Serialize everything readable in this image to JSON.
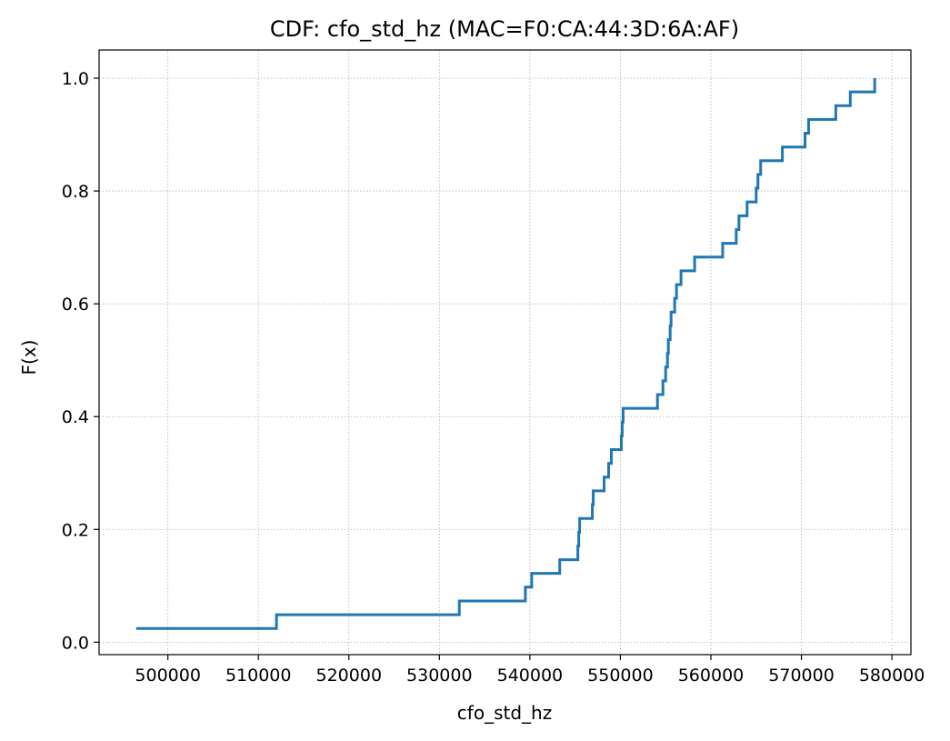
{
  "chart_data": {
    "type": "line",
    "step": true,
    "title": "CDF: cfo_std_hz (MAC=F0:CA:44:3D:6A:AF)",
    "xlabel": "cfo_std_hz",
    "ylabel": "F(x)",
    "xlim": [
      492400,
      582100
    ],
    "ylim": [
      -0.022,
      1.05
    ],
    "grid": true,
    "x_ticks": [
      500000,
      510000,
      520000,
      530000,
      540000,
      550000,
      560000,
      570000,
      580000
    ],
    "x_tick_labels": [
      "500000",
      "510000",
      "520000",
      "530000",
      "540000",
      "550000",
      "560000",
      "570000",
      "580000"
    ],
    "y_ticks": [
      0.0,
      0.2,
      0.4,
      0.6,
      0.8,
      1.0
    ],
    "y_tick_labels": [
      "0.0",
      "0.2",
      "0.4",
      "0.6",
      "0.8",
      "1.0"
    ],
    "series": [
      {
        "color": "#1f77b4",
        "points": [
          [
            496500,
            0.0244
          ],
          [
            512000,
            0.0244
          ],
          [
            512000,
            0.0488
          ],
          [
            532200,
            0.0488
          ],
          [
            532200,
            0.0732
          ],
          [
            539500,
            0.0732
          ],
          [
            539500,
            0.0976
          ],
          [
            540200,
            0.0976
          ],
          [
            540200,
            0.122
          ],
          [
            543300,
            0.122
          ],
          [
            543300,
            0.1463
          ],
          [
            545300,
            0.1463
          ],
          [
            545300,
            0.1707
          ],
          [
            545400,
            0.1707
          ],
          [
            545400,
            0.1951
          ],
          [
            545500,
            0.1951
          ],
          [
            545500,
            0.2195
          ],
          [
            546900,
            0.2195
          ],
          [
            546900,
            0.2439
          ],
          [
            547000,
            0.2439
          ],
          [
            547000,
            0.2683
          ],
          [
            548200,
            0.2683
          ],
          [
            548200,
            0.2927
          ],
          [
            548700,
            0.2927
          ],
          [
            548700,
            0.3171
          ],
          [
            549000,
            0.3171
          ],
          [
            549000,
            0.3415
          ],
          [
            550100,
            0.3415
          ],
          [
            550100,
            0.3659
          ],
          [
            550200,
            0.3659
          ],
          [
            550200,
            0.3902
          ],
          [
            550300,
            0.3902
          ],
          [
            550300,
            0.4146
          ],
          [
            554100,
            0.4146
          ],
          [
            554100,
            0.439
          ],
          [
            554700,
            0.439
          ],
          [
            554700,
            0.4634
          ],
          [
            555000,
            0.4634
          ],
          [
            555000,
            0.4878
          ],
          [
            555200,
            0.4878
          ],
          [
            555200,
            0.5122
          ],
          [
            555300,
            0.5122
          ],
          [
            555300,
            0.5366
          ],
          [
            555500,
            0.5366
          ],
          [
            555500,
            0.561
          ],
          [
            555600,
            0.561
          ],
          [
            555600,
            0.5854
          ],
          [
            556000,
            0.5854
          ],
          [
            556000,
            0.6098
          ],
          [
            556200,
            0.6098
          ],
          [
            556200,
            0.6341
          ],
          [
            556700,
            0.6341
          ],
          [
            556700,
            0.6585
          ],
          [
            558200,
            0.6585
          ],
          [
            558200,
            0.6829
          ],
          [
            561300,
            0.6829
          ],
          [
            561300,
            0.7073
          ],
          [
            562800,
            0.7073
          ],
          [
            562800,
            0.7317
          ],
          [
            563100,
            0.7317
          ],
          [
            563100,
            0.7561
          ],
          [
            564000,
            0.7561
          ],
          [
            564000,
            0.7805
          ],
          [
            565000,
            0.7805
          ],
          [
            565000,
            0.8049
          ],
          [
            565200,
            0.8049
          ],
          [
            565200,
            0.8293
          ],
          [
            565500,
            0.8293
          ],
          [
            565500,
            0.8537
          ],
          [
            567900,
            0.8537
          ],
          [
            567900,
            0.878
          ],
          [
            570400,
            0.878
          ],
          [
            570400,
            0.9024
          ],
          [
            570800,
            0.9024
          ],
          [
            570800,
            0.9268
          ],
          [
            573800,
            0.9268
          ],
          [
            573800,
            0.9512
          ],
          [
            575400,
            0.9512
          ],
          [
            575400,
            0.9756
          ],
          [
            578100,
            0.9756
          ],
          [
            578100,
            1.0
          ]
        ]
      }
    ]
  }
}
